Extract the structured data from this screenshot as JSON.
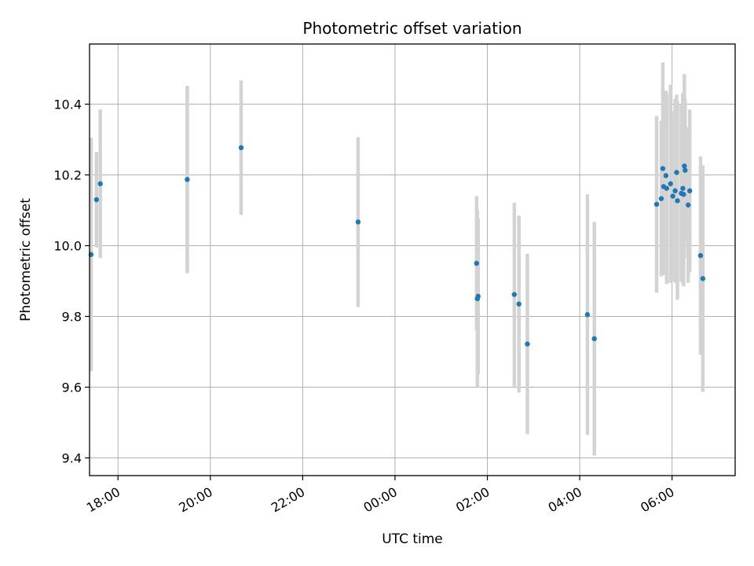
{
  "chart_data": {
    "type": "scatter",
    "title": "Photometric offset variation",
    "xlabel": "UTC time",
    "ylabel": "Photometric offset",
    "grid": true,
    "xlim": [
      "17:23",
      "07:22"
    ],
    "ylim": [
      9.35,
      10.57
    ],
    "x_ticks": [
      "18:00",
      "20:00",
      "22:00",
      "00:00",
      "02:00",
      "04:00",
      "06:00"
    ],
    "y_ticks": [
      9.4,
      9.6,
      9.8,
      10.0,
      10.2,
      10.4
    ],
    "marker_color": "#1f77b4",
    "errorbar_color": "#d3d3d3",
    "points": [
      {
        "x": "17:25",
        "y": 9.975,
        "err": 0.33
      },
      {
        "x": "17:32",
        "y": 10.13,
        "err": 0.135
      },
      {
        "x": "17:37",
        "y": 10.175,
        "err": 0.21
      },
      {
        "x": "19:30",
        "y": 10.187,
        "err": 0.265
      },
      {
        "x": "20:40",
        "y": 10.277,
        "err": 0.19
      },
      {
        "x": "23:12",
        "y": 10.067,
        "err": 0.24
      },
      {
        "x": "01:46",
        "y": 9.95,
        "err": 0.19
      },
      {
        "x": "01:47",
        "y": 9.85,
        "err": 0.25
      },
      {
        "x": "01:48",
        "y": 9.857,
        "err": 0.22
      },
      {
        "x": "02:35",
        "y": 9.862,
        "err": 0.26
      },
      {
        "x": "02:41",
        "y": 9.835,
        "err": 0.25
      },
      {
        "x": "02:52",
        "y": 9.722,
        "err": 0.255
      },
      {
        "x": "04:10",
        "y": 9.805,
        "err": 0.34
      },
      {
        "x": "04:19",
        "y": 9.737,
        "err": 0.33
      },
      {
        "x": "05:40",
        "y": 10.117,
        "err": 0.25
      },
      {
        "x": "05:46",
        "y": 10.133,
        "err": 0.22
      },
      {
        "x": "05:48",
        "y": 10.218,
        "err": 0.3
      },
      {
        "x": "05:49",
        "y": 10.167,
        "err": 0.25
      },
      {
        "x": "05:52",
        "y": 10.198,
        "err": 0.24
      },
      {
        "x": "05:53",
        "y": 10.162,
        "err": 0.27
      },
      {
        "x": "05:58",
        "y": 10.175,
        "err": 0.28
      },
      {
        "x": "06:01",
        "y": 10.14,
        "err": 0.24
      },
      {
        "x": "06:04",
        "y": 10.155,
        "err": 0.26
      },
      {
        "x": "06:06",
        "y": 10.207,
        "err": 0.22
      },
      {
        "x": "06:07",
        "y": 10.127,
        "err": 0.28
      },
      {
        "x": "06:12",
        "y": 10.148,
        "err": 0.25
      },
      {
        "x": "06:14",
        "y": 10.162,
        "err": 0.27
      },
      {
        "x": "06:15",
        "y": 10.145,
        "err": 0.26
      },
      {
        "x": "06:16",
        "y": 10.225,
        "err": 0.26
      },
      {
        "x": "06:17",
        "y": 10.213,
        "err": 0.2
      },
      {
        "x": "06:21",
        "y": 10.115,
        "err": 0.22
      },
      {
        "x": "06:23",
        "y": 10.155,
        "err": 0.23
      },
      {
        "x": "06:37",
        "y": 9.972,
        "err": 0.28
      },
      {
        "x": "06:40",
        "y": 9.907,
        "err": 0.32
      }
    ]
  }
}
